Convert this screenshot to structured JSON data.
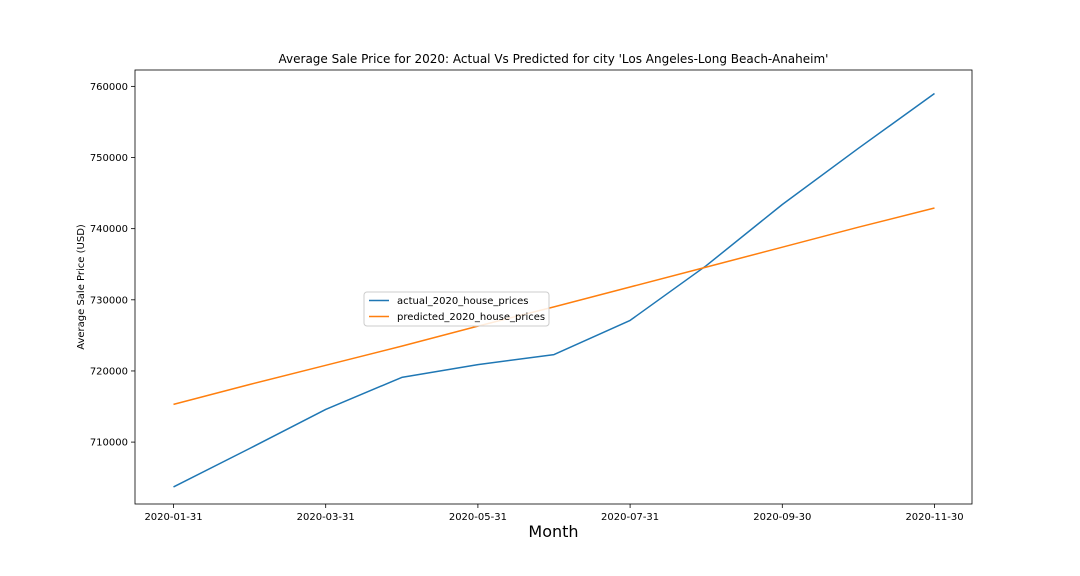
{
  "chart_data": {
    "type": "line",
    "title": "Average Sale Price for 2020: Actual Vs Predicted for city 'Los Angeles-Long Beach-Anaheim'",
    "xlabel": "Month",
    "ylabel": "Average Sale Price (USD)",
    "x": [
      "2020-01-31",
      "2020-02-29",
      "2020-03-31",
      "2020-04-30",
      "2020-05-31",
      "2020-06-30",
      "2020-07-31",
      "2020-08-31",
      "2020-09-30",
      "2020-10-31",
      "2020-11-30"
    ],
    "x_ticks": [
      "2020-01-31",
      "2020-03-31",
      "2020-05-31",
      "2020-07-31",
      "2020-09-30",
      "2020-11-30"
    ],
    "y_ticks": [
      710000,
      720000,
      730000,
      740000,
      750000,
      760000
    ],
    "y_tick_labels": [
      "710000",
      "720000",
      "730000",
      "740000",
      "750000",
      "760000"
    ],
    "ylim": [
      701300,
      762300
    ],
    "series": [
      {
        "name": "actual_2020_house_prices",
        "color": "#1f77b4",
        "values": [
          703700,
          709100,
          714600,
          719100,
          720900,
          722300,
          727100,
          734800,
          743400,
          751300,
          759000
        ]
      },
      {
        "name": "predicted_2020_house_prices",
        "color": "#ff7f0e",
        "values": [
          715300,
          718100,
          720800,
          723500,
          726300,
          729000,
          731800,
          734600,
          737400,
          740200,
          742900
        ]
      }
    ],
    "legend_position": "center-left",
    "grid": false
  }
}
